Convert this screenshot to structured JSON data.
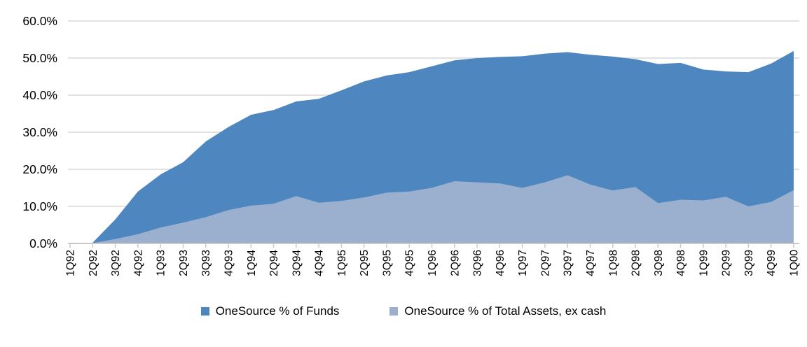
{
  "chart_data": {
    "type": "area",
    "title": "",
    "xlabel": "",
    "ylabel": "",
    "ylim": [
      0,
      60
    ],
    "y_tick_step": 10,
    "y_tick_labels": [
      "0.0%",
      "10.0%",
      "20.0%",
      "30.0%",
      "40.0%",
      "50.0%",
      "60.0%"
    ],
    "grid": true,
    "legend_position": "bottom",
    "overlap_mode": "overlapping (not stacked)",
    "categories": [
      "1Q92",
      "2Q92",
      "3Q92",
      "4Q92",
      "1Q93",
      "2Q93",
      "3Q93",
      "4Q93",
      "1Q94",
      "2Q94",
      "3Q94",
      "4Q94",
      "1Q95",
      "2Q95",
      "3Q95",
      "4Q95",
      "1Q96",
      "2Q96",
      "3Q96",
      "4Q96",
      "1Q97",
      "2Q97",
      "3Q97",
      "4Q97",
      "1Q98",
      "2Q98",
      "3Q98",
      "4Q98",
      "1Q99",
      "2Q99",
      "3Q99",
      "4Q99",
      "1Q00"
    ],
    "series": [
      {
        "name": "OneSource % of Funds",
        "color": "#4E86C0",
        "values": [
          0.0,
          0.2,
          6.5,
          14.0,
          18.6,
          21.9,
          27.5,
          31.4,
          34.7,
          36.0,
          38.3,
          39.0,
          41.3,
          43.7,
          45.3,
          46.2,
          47.8,
          49.4,
          50.0,
          50.3,
          50.5,
          51.2,
          51.6,
          50.9,
          50.4,
          49.7,
          48.4,
          48.7,
          46.9,
          46.4,
          46.2,
          48.5,
          51.9
        ]
      },
      {
        "name": "OneSource % of Total Assets, ex cash",
        "color": "#9BB0CE",
        "values": [
          0.0,
          0.1,
          1.2,
          2.5,
          4.3,
          5.6,
          7.1,
          9.0,
          10.2,
          10.7,
          12.8,
          11.0,
          11.5,
          12.4,
          13.7,
          14.0,
          15.0,
          16.8,
          16.5,
          16.2,
          15.0,
          16.5,
          18.4,
          15.9,
          14.3,
          15.2,
          10.9,
          11.8,
          11.6,
          12.6,
          10.0,
          11.2,
          14.4
        ]
      }
    ]
  },
  "legend": {
    "items": [
      {
        "label": "OneSource % of Funds",
        "color": "#4E86C0"
      },
      {
        "label": "OneSource % of Total Assets, ex cash",
        "color": "#9BB0CE"
      }
    ]
  },
  "colors": {
    "gridline": "#D9D9D9",
    "axis": "#C9C9C9",
    "background": "#FFFFFF"
  }
}
